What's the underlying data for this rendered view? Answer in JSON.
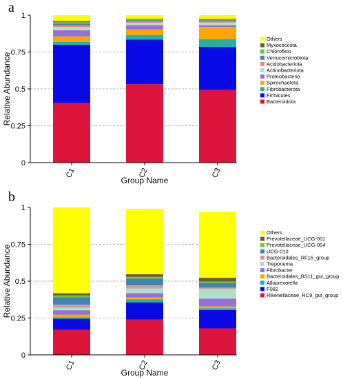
{
  "panel_labels": [
    "a",
    "b"
  ],
  "chart_data": [
    {
      "type": "bar",
      "stacked": true,
      "panel": "a",
      "title": "",
      "xlabel": "Group Name",
      "ylabel": "Relative Abundance",
      "ylim": [
        0,
        1
      ],
      "yticks": [
        "0",
        "0.25",
        "0.5",
        "0.75",
        "1"
      ],
      "grid": "dashed horizontal",
      "legend_position": "right",
      "categories": [
        "C1",
        "C2",
        "C3"
      ],
      "series": [
        {
          "name": "Bacteroidota",
          "color": "#dc143c",
          "values": [
            0.405,
            0.532,
            0.492
          ]
        },
        {
          "name": "Firmicutes",
          "color": "#0a0ae6",
          "values": [
            0.395,
            0.302,
            0.293
          ]
        },
        {
          "name": "Fibrobacterota",
          "color": "#20b2aa",
          "values": [
            0.018,
            0.032,
            0.052
          ]
        },
        {
          "name": "Spirochaetota",
          "color": "#ffa500",
          "values": [
            0.038,
            0.038,
            0.083
          ]
        },
        {
          "name": "Proteobacteria",
          "color": "#9370db",
          "values": [
            0.042,
            0.028,
            0.012
          ]
        },
        {
          "name": "Actinobacteriota",
          "color": "#b0e0c8",
          "values": [
            0.022,
            0.017,
            0.018
          ]
        },
        {
          "name": "Acidobacteriota",
          "color": "#f08080",
          "values": [
            0.012,
            0.008,
            0.007
          ]
        },
        {
          "name": "Verrucomicrobiota",
          "color": "#4682b4",
          "values": [
            0.01,
            0.008,
            0.009
          ]
        },
        {
          "name": "Chloroflexi",
          "color": "#66cc33",
          "values": [
            0.01,
            0.006,
            0.004
          ]
        },
        {
          "name": "Myxococcota",
          "color": "#6b5e2e",
          "values": [
            0.008,
            0.004,
            0.004
          ]
        },
        {
          "name": "Others",
          "color": "#ffff00",
          "values": [
            0.04,
            0.025,
            0.026
          ]
        }
      ]
    },
    {
      "type": "bar",
      "stacked": true,
      "panel": "b",
      "title": "",
      "xlabel": "Group Name",
      "ylabel": "Relative Abundance",
      "ylim": [
        0,
        1
      ],
      "yticks": [
        "0",
        "0.25",
        "0.5",
        "0.75",
        "1"
      ],
      "grid": "dashed horizontal",
      "legend_position": "right",
      "categories": [
        "C1",
        "C2",
        "C3"
      ],
      "series": [
        {
          "name": "Rikenellaceae_RC9_gut_group",
          "color": "#dc143c",
          "values": [
            0.17,
            0.24,
            0.18
          ]
        },
        {
          "name": "F082",
          "color": "#0a0ae6",
          "values": [
            0.075,
            0.115,
            0.125
          ]
        },
        {
          "name": "Alloprevotella",
          "color": "#20b2aa",
          "values": [
            0.01,
            0.022,
            0.012
          ]
        },
        {
          "name": "Bacteroidales_BS11_gut_group",
          "color": "#ffa500",
          "values": [
            0.018,
            0.013,
            0.012
          ]
        },
        {
          "name": "Fibrobacter",
          "color": "#9370db",
          "values": [
            0.03,
            0.028,
            0.052
          ]
        },
        {
          "name": "Treponema",
          "color": "#b0e0c8",
          "values": [
            0.017,
            0.032,
            0.065
          ]
        },
        {
          "name": "Bacteroidales_RF16_group",
          "color": "#c9a0a0",
          "values": [
            0.02,
            0.022,
            0.01
          ]
        },
        {
          "name": "UCG-010",
          "color": "#4682b4",
          "values": [
            0.05,
            0.045,
            0.032
          ]
        },
        {
          "name": "Prevotellaceae_UCG-004",
          "color": "#66cc33",
          "values": [
            0.013,
            0.012,
            0.01
          ]
        },
        {
          "name": "Prevotellaceae_UCG-001",
          "color": "#6b5e2e",
          "values": [
            0.015,
            0.018,
            0.025
          ]
        },
        {
          "name": "Others",
          "color": "#ffff00",
          "values": [
            0.582,
            0.443,
            0.447
          ]
        }
      ]
    }
  ]
}
